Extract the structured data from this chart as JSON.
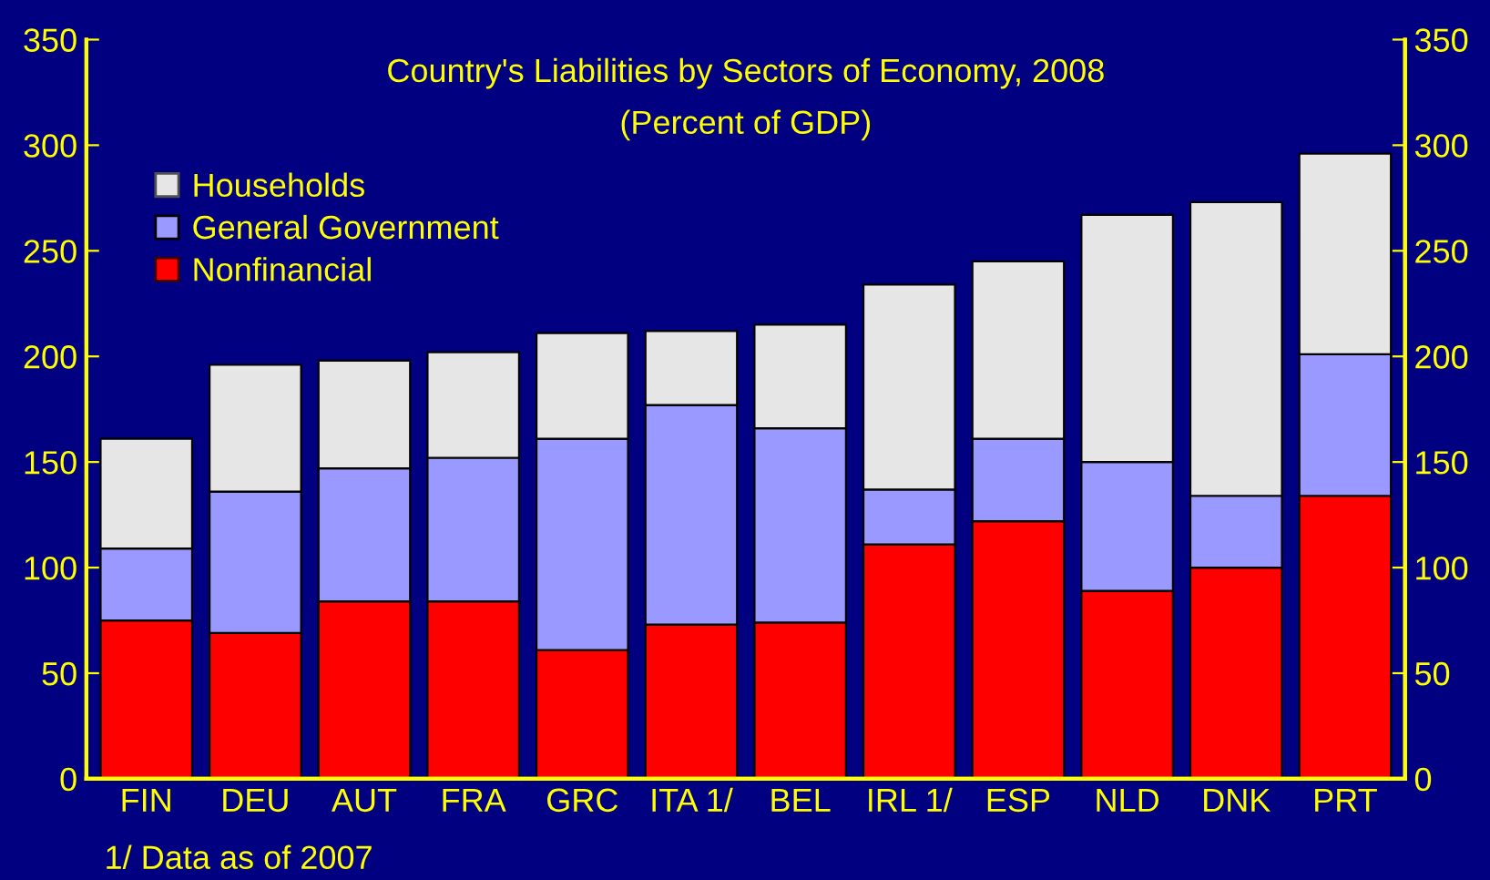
{
  "chart_data": {
    "type": "bar",
    "stacked": true,
    "title": "Country's Liabilities by Sectors of Economy, 2008",
    "subtitle": "(Percent of GDP)",
    "categories": [
      "FIN",
      "DEU",
      "AUT",
      "FRA",
      "GRC",
      "ITA 1/",
      "BEL",
      "IRL 1/",
      "ESP",
      "NLD",
      "DNK",
      "PRT"
    ],
    "series": [
      {
        "name": "Nonfinancial",
        "color": "#ff0000",
        "values": [
          75,
          69,
          84,
          84,
          61,
          73,
          74,
          111,
          122,
          89,
          100,
          134
        ]
      },
      {
        "name": "General Government",
        "color": "#9999ff",
        "values": [
          34,
          67,
          63,
          68,
          100,
          104,
          92,
          26,
          39,
          61,
          34,
          67
        ]
      },
      {
        "name": "Households",
        "color": "#e6e6e6",
        "values": [
          52,
          60,
          51,
          50,
          50,
          35,
          49,
          97,
          84,
          117,
          139,
          95
        ]
      }
    ],
    "ylim": [
      0,
      350
    ],
    "yticks": [
      0,
      50,
      100,
      150,
      200,
      250,
      300,
      350
    ],
    "y2lim": [
      0,
      350
    ],
    "y2ticks": [
      0,
      50,
      100,
      150,
      200,
      250,
      300,
      350
    ],
    "legend": "top left",
    "grid": false,
    "annotations": [
      "1/ Data as of 2007"
    ]
  }
}
